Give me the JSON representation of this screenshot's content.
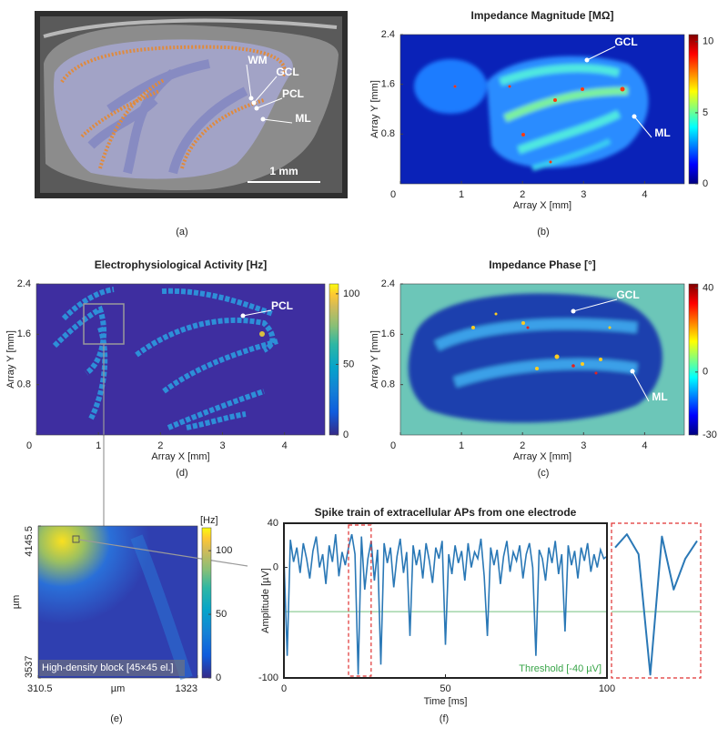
{
  "chart_data": [
    {
      "type": "image",
      "caption": "(a)",
      "annotations": [
        "WM",
        "GCL",
        "PCL",
        "ML"
      ],
      "scalebar": "1 mm"
    },
    {
      "type": "heatmap",
      "title": "Impedance Magnitude [MΩ]",
      "xlabel": "Array X [mm]",
      "ylabel": "Array Y [mm]",
      "xlim": [
        0,
        4.65
      ],
      "ylim": [
        0,
        2.4
      ],
      "xticks": [
        0,
        1,
        2,
        3,
        4
      ],
      "yticks": [
        0.8,
        1.6,
        2.4
      ],
      "colormap": "jet",
      "clim": [
        0,
        10.5
      ],
      "cticks": [
        0,
        5,
        10
      ],
      "annotations": [
        "GCL",
        "ML"
      ],
      "caption": "(b)"
    },
    {
      "type": "heatmap",
      "title": "Electrophysiological Activity [Hz]",
      "xlabel": "Array X [mm]",
      "ylabel": "Array Y [mm]",
      "xlim": [
        0,
        4.65
      ],
      "ylim": [
        0,
        2.4
      ],
      "xticks": [
        0,
        1,
        2,
        3,
        4
      ],
      "yticks": [
        0.8,
        1.6,
        2.4
      ],
      "colormap": "parula",
      "clim": [
        0,
        107
      ],
      "cticks": [
        0,
        50,
        100
      ],
      "annotations": [
        "PCL"
      ],
      "caption": "(d)"
    },
    {
      "type": "heatmap",
      "title": "Impedance Phase [°]",
      "xlabel": "Array X [mm]",
      "ylabel": "Array Y [mm]",
      "xlim": [
        0,
        4.65
      ],
      "ylim": [
        0,
        2.4
      ],
      "xticks": [
        0,
        1,
        2,
        3,
        4
      ],
      "yticks": [
        0.8,
        1.6,
        2.4
      ],
      "colormap": "jet",
      "clim": [
        -30,
        42
      ],
      "cticks": [
        -30,
        0,
        40
      ],
      "annotations": [
        "GCL",
        "ML"
      ],
      "caption": "(c)"
    },
    {
      "type": "heatmap",
      "xlabel": "µm",
      "ylabel": "µm",
      "xlim": [
        310.5,
        1323
      ],
      "ylim": [
        3537,
        4145.5
      ],
      "xticks": [
        310.5,
        1323
      ],
      "yticks": [
        3537,
        4145.5
      ],
      "colormap": "parula",
      "clim": [
        0,
        118
      ],
      "cticks": [
        0,
        50,
        100
      ],
      "clabel": "[Hz]",
      "inset_label": "High-density block [45×45 el.]",
      "caption": "(e)"
    },
    {
      "type": "line",
      "title": "Spike train of extracellular APs from one electrode",
      "xlabel": "Time [ms]",
      "ylabel": "Amplitude [µV]",
      "xlim": [
        0,
        100
      ],
      "ylim": [
        -100,
        40
      ],
      "xticks": [
        0,
        50,
        100
      ],
      "yticks": [
        -100,
        0,
        40
      ],
      "color": "#2a78b6",
      "threshold": -40,
      "threshold_label": "Threshold [-40 µV]",
      "threshold_color": "#3aa64a",
      "zoom_xlim": [
        20,
        27
      ],
      "caption": "(f)",
      "x": [
        0,
        1,
        2,
        3,
        4,
        5,
        6,
        7,
        8,
        9,
        10,
        11,
        12,
        13,
        14,
        15,
        16,
        17,
        18,
        19,
        20,
        21,
        22,
        23,
        24,
        25,
        26,
        27,
        28,
        29,
        30,
        31,
        32,
        33,
        34,
        35,
        36,
        37,
        38,
        39,
        40,
        41,
        42,
        43,
        44,
        45,
        46,
        47,
        48,
        49,
        50,
        51,
        52,
        53,
        54,
        55,
        56,
        57,
        58,
        59,
        60,
        61,
        62,
        63,
        64,
        65,
        66,
        67,
        68,
        69,
        70,
        71,
        72,
        73,
        74,
        75,
        76,
        77,
        78,
        79,
        80,
        81,
        82,
        83,
        84,
        85,
        86,
        87,
        88,
        89,
        90,
        91,
        92,
        93,
        94,
        95,
        96,
        97,
        98,
        99,
        100
      ],
      "values": [
        10,
        -80,
        25,
        5,
        18,
        -5,
        22,
        8,
        -10,
        15,
        28,
        0,
        12,
        -15,
        20,
        5,
        30,
        -8,
        14,
        2,
        18,
        30,
        12,
        -97,
        28,
        -20,
        8,
        24,
        -12,
        16,
        -88,
        22,
        4,
        18,
        -18,
        10,
        26,
        -5,
        14,
        -62,
        20,
        2,
        16,
        -10,
        22,
        6,
        -14,
        18,
        8,
        24,
        -70,
        12,
        -6,
        20,
        4,
        15,
        -12,
        22,
        0,
        14,
        8,
        26,
        -8,
        -62,
        18,
        2,
        16,
        -15,
        10,
        24,
        -4,
        14,
        6,
        20,
        -10,
        12,
        22,
        0,
        -80,
        16,
        8,
        -12,
        18,
        4,
        24,
        -6,
        12,
        -58,
        20,
        2,
        15,
        -10,
        18,
        6,
        22,
        -4,
        12,
        0,
        16,
        8,
        10
      ]
    }
  ]
}
